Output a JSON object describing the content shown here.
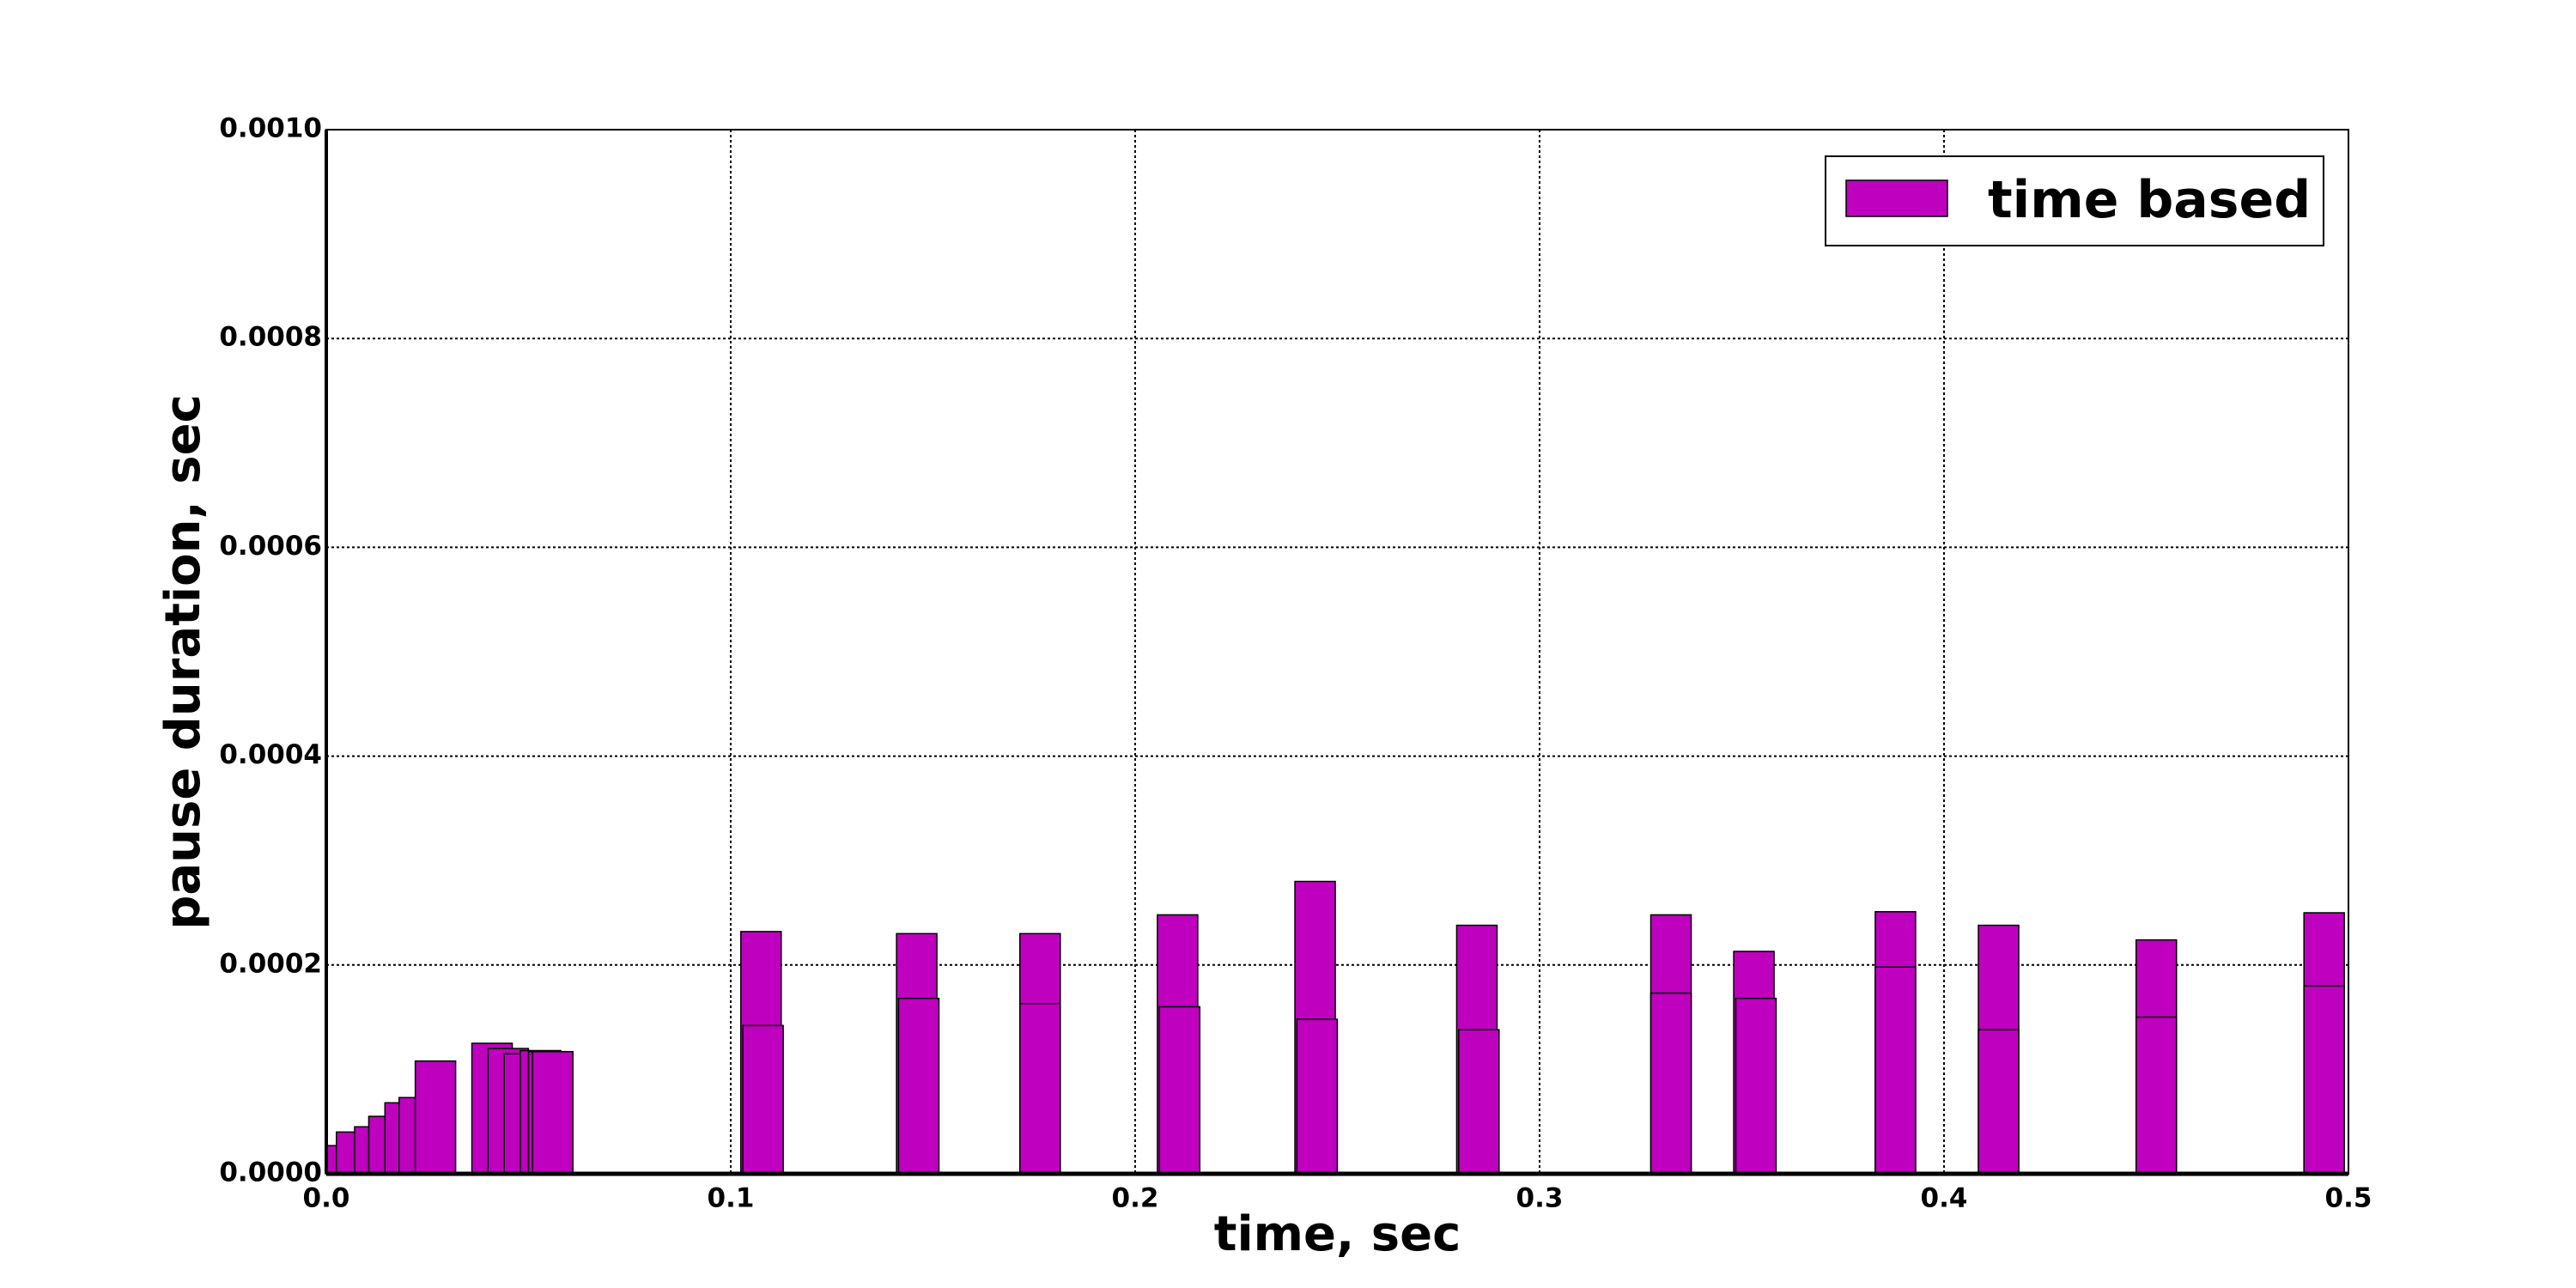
{
  "chart_data": {
    "type": "bar",
    "xlabel": "time, sec",
    "ylabel": "pause duration, sec",
    "xlim": [
      0.0,
      0.5
    ],
    "ylim": [
      0.0,
      0.001
    ],
    "grid": true,
    "legend_position": "top-right",
    "x_ticks": [
      "0.0",
      "0.1",
      "0.2",
      "0.3",
      "0.4",
      "0.5"
    ],
    "y_ticks": [
      "0.0000",
      "0.0002",
      "0.0004",
      "0.0006",
      "0.0008",
      "0.0010"
    ],
    "series": [
      {
        "name": "time based",
        "color": "#bf00bf",
        "bars": [
          {
            "x": 0.0,
            "y": 2.7e-05
          },
          {
            "x": 0.0025,
            "y": 4e-05
          },
          {
            "x": 0.007,
            "y": 4.5e-05
          },
          {
            "x": 0.0105,
            "y": 5.5e-05
          },
          {
            "x": 0.0145,
            "y": 6.8e-05
          },
          {
            "x": 0.018,
            "y": 7.3e-05
          },
          {
            "x": 0.022,
            "y": 0.000108
          },
          {
            "x": 0.036,
            "y": 0.000125
          },
          {
            "x": 0.04,
            "y": 0.00012
          },
          {
            "x": 0.044,
            "y": 0.000115
          },
          {
            "x": 0.048,
            "y": 0.000118
          },
          {
            "x": 0.05,
            "y": 0.000117
          },
          {
            "x": 0.051,
            "y": 0.000117
          },
          {
            "x": 0.1025,
            "y": 0.000232
          },
          {
            "x": 0.103,
            "y": 0.000142
          },
          {
            "x": 0.141,
            "y": 0.00023
          },
          {
            "x": 0.1415,
            "y": 0.000168
          },
          {
            "x": 0.1715,
            "y": 0.00023
          },
          {
            "x": 0.1715,
            "y": 0.000163
          },
          {
            "x": 0.2055,
            "y": 0.000248
          },
          {
            "x": 0.206,
            "y": 0.00016
          },
          {
            "x": 0.2395,
            "y": 0.00028
          },
          {
            "x": 0.24,
            "y": 0.000148
          },
          {
            "x": 0.2795,
            "y": 0.000238
          },
          {
            "x": 0.28,
            "y": 0.000138
          },
          {
            "x": 0.3275,
            "y": 0.000248
          },
          {
            "x": 0.3275,
            "y": 0.000173
          },
          {
            "x": 0.348,
            "y": 0.000213
          },
          {
            "x": 0.3485,
            "y": 0.000168
          },
          {
            "x": 0.383,
            "y": 0.000251
          },
          {
            "x": 0.383,
            "y": 0.000198
          },
          {
            "x": 0.4085,
            "y": 0.000238
          },
          {
            "x": 0.4085,
            "y": 0.000138
          },
          {
            "x": 0.4475,
            "y": 0.000224
          },
          {
            "x": 0.4475,
            "y": 0.00015
          },
          {
            "x": 0.489,
            "y": 0.00025
          },
          {
            "x": 0.489,
            "y": 0.00018
          }
        ]
      }
    ]
  }
}
